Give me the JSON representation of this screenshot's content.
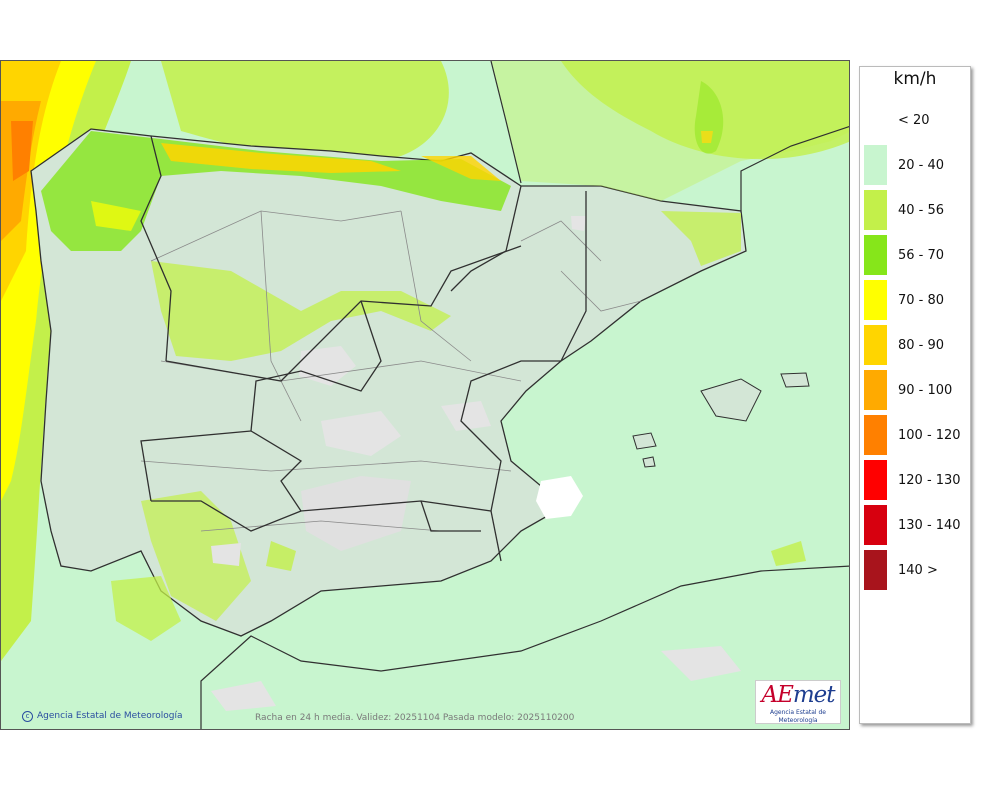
{
  "legend": {
    "unit": "km/h",
    "classes": [
      {
        "label": "< 20",
        "color": "#ffffff"
      },
      {
        "label": "20 - 40",
        "color": "#c8f5cf"
      },
      {
        "label": "40 - 56",
        "color": "#c3f04a"
      },
      {
        "label": "56 - 70",
        "color": "#86e61a"
      },
      {
        "label": "70 - 80",
        "color": "#ffff00"
      },
      {
        "label": "80 - 90",
        "color": "#ffd500"
      },
      {
        "label": "90 - 100",
        "color": "#ffaa00"
      },
      {
        "label": "100 - 120",
        "color": "#ff8000"
      },
      {
        "label": "120 - 130",
        "color": "#ff0000"
      },
      {
        "label": "130 - 140",
        "color": "#d7000f"
      },
      {
        "label": "140 >",
        "color": "#a8141c"
      }
    ]
  },
  "credit": "Agencia Estatal de Meteorología",
  "caption": "Racha en 24 h media. Validez: 20251104 Pasada modelo: 2025110200",
  "logo": {
    "text_a": "AE",
    "text_b": "met",
    "subtitle": "Agencia Estatal de Meteorología"
  },
  "colors": {
    "land_shade": "#d3e6d6",
    "border": "#303030",
    "province_line": "#8a8a8a"
  }
}
